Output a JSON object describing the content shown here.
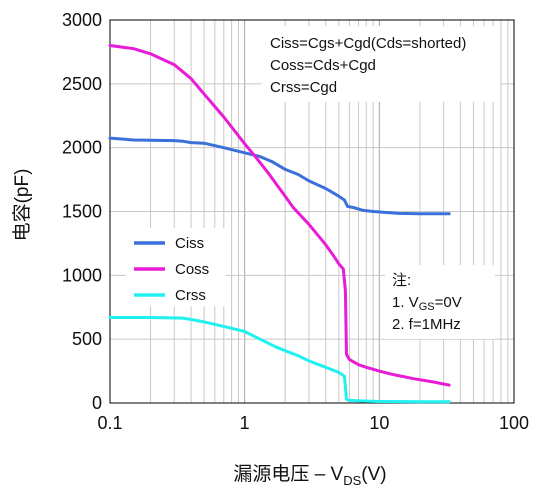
{
  "chart_data": {
    "type": "line",
    "title": "",
    "xlabel": "漏源电压 – V",
    "xlabel_sub": "DS",
    "xlabel_unit": "(V)",
    "ylabel": "电容(pF)",
    "x_scale": "log",
    "xlim": [
      0.1,
      100
    ],
    "ylim": [
      0,
      3000
    ],
    "x_tick_labels": [
      "0.1",
      "1",
      "10",
      "100"
    ],
    "y_tick_labels": [
      "0",
      "500",
      "1000",
      "1500",
      "2000",
      "2500",
      "3000"
    ],
    "grid": true,
    "legend_position": "middle-left",
    "annotation_formulas": [
      "Ciss=Cgs+Cgd(Cds=shorted)",
      "Coss=Cds+Cgd",
      "Crss=Cgd"
    ],
    "note": {
      "title": "注:",
      "line1_prefix": "1. V",
      "line1_sub": "GS",
      "line1_suffix": "=0V",
      "line2": "2. f=1MHz"
    },
    "series": [
      {
        "name": "Ciss",
        "color": "#3b6fd9",
        "points": [
          [
            0.1,
            2075
          ],
          [
            0.15,
            2060
          ],
          [
            0.2,
            2058
          ],
          [
            0.3,
            2055
          ],
          [
            0.35,
            2050
          ],
          [
            0.4,
            2040
          ],
          [
            0.5,
            2035
          ],
          [
            0.7,
            2000
          ],
          [
            1,
            1960
          ],
          [
            1.3,
            1930
          ],
          [
            1.6,
            1890
          ],
          [
            2,
            1830
          ],
          [
            2.5,
            1790
          ],
          [
            3,
            1740
          ],
          [
            4,
            1680
          ],
          [
            5,
            1620
          ],
          [
            5.5,
            1590
          ],
          [
            5.8,
            1540
          ],
          [
            6.5,
            1530
          ],
          [
            7.5,
            1510
          ],
          [
            9,
            1500
          ],
          [
            12,
            1490
          ],
          [
            14,
            1485
          ],
          [
            20,
            1483
          ],
          [
            33,
            1483
          ]
        ]
      },
      {
        "name": "Coss",
        "color": "#e81bd6",
        "points": [
          [
            0.1,
            2800
          ],
          [
            0.15,
            2775
          ],
          [
            0.2,
            2735
          ],
          [
            0.3,
            2650
          ],
          [
            0.4,
            2540
          ],
          [
            0.5,
            2420
          ],
          [
            0.7,
            2240
          ],
          [
            1,
            2030
          ],
          [
            1.2,
            1930
          ],
          [
            1.5,
            1800
          ],
          [
            2,
            1620
          ],
          [
            2.3,
            1530
          ],
          [
            3,
            1400
          ],
          [
            4,
            1240
          ],
          [
            4.6,
            1150
          ],
          [
            5,
            1090
          ],
          [
            5.4,
            1050
          ],
          [
            5.6,
            880
          ],
          [
            5.7,
            380
          ],
          [
            6,
            340
          ],
          [
            7,
            300
          ],
          [
            8,
            280
          ],
          [
            10,
            250
          ],
          [
            13,
            220
          ],
          [
            18,
            190
          ],
          [
            25,
            165
          ],
          [
            33,
            140
          ]
        ]
      },
      {
        "name": "Crss",
        "color": "#1ff0f0",
        "points": [
          [
            0.1,
            670
          ],
          [
            0.2,
            670
          ],
          [
            0.35,
            665
          ],
          [
            0.5,
            635
          ],
          [
            0.7,
            600
          ],
          [
            1,
            560
          ],
          [
            1.3,
            500
          ],
          [
            1.7,
            440
          ],
          [
            2,
            410
          ],
          [
            2.5,
            370
          ],
          [
            3,
            330
          ],
          [
            4,
            280
          ],
          [
            5,
            240
          ],
          [
            5.5,
            210
          ],
          [
            5.7,
            30
          ],
          [
            6,
            20
          ],
          [
            8,
            15
          ],
          [
            10,
            12
          ],
          [
            20,
            10
          ],
          [
            33,
            10
          ]
        ]
      }
    ]
  }
}
